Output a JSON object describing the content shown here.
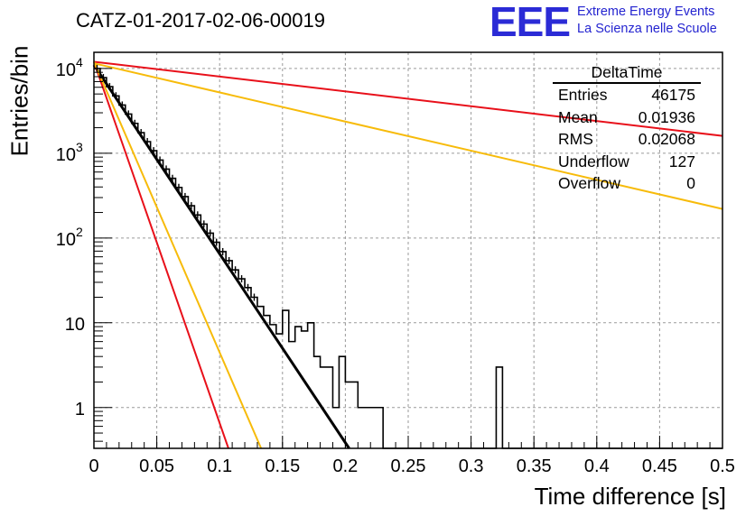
{
  "header": {
    "title": "CATZ-01-2017-02-06-00019",
    "logo_mark": "EEE",
    "logo_line1": "Extreme Energy Events",
    "logo_line2": "La Scienza nelle Scuole"
  },
  "stats": {
    "name": "DeltaTime",
    "rows": [
      {
        "label": "Entries",
        "value": "46175"
      },
      {
        "label": "Mean",
        "value": "0.01936"
      },
      {
        "label": "RMS",
        "value": "0.02068"
      },
      {
        "label": "Underflow",
        "value": "127"
      },
      {
        "label": "Overflow",
        "value": "0"
      }
    ]
  },
  "colors": {
    "histogram": "#000000",
    "red": "#e8101a",
    "orange": "#f7bb0a",
    "grid": "#9a9a9a"
  },
  "chart_data": {
    "type": "line",
    "xlabel": "Time difference [s]",
    "ylabel": "Entries/bin",
    "xlim": [
      0,
      0.5
    ],
    "ylim": [
      0.33,
      15500
    ],
    "ylog": true,
    "grid": true,
    "xticks": [
      "0",
      "0.05",
      "0.1",
      "0.15",
      "0.2",
      "0.25",
      "0.3",
      "0.35",
      "0.4",
      "0.45",
      "0.5"
    ],
    "yticks": [
      {
        "value": 1,
        "label": "1"
      },
      {
        "value": 10,
        "label": "10"
      },
      {
        "value": 100,
        "label": "10",
        "sup": "2"
      },
      {
        "value": 1000,
        "label": "10",
        "sup": "3"
      },
      {
        "value": 10000,
        "label": "10",
        "sup": "4"
      }
    ],
    "histogram": {
      "name": "DeltaTime",
      "bin_width": 0.005,
      "bin_edges_start": 0,
      "values": [
        10000,
        7800,
        6100,
        4750,
        3700,
        2900,
        2250,
        1750,
        1370,
        1070,
        830,
        650,
        505,
        395,
        308,
        240,
        187,
        146,
        114,
        89,
        69,
        54,
        42,
        33,
        26,
        20,
        15.6,
        12.2,
        9.5,
        7.4,
        14,
        6,
        9,
        8,
        10,
        4,
        3,
        3,
        1,
        4,
        2,
        2,
        1,
        1,
        1,
        1,
        0,
        0,
        0,
        0,
        0,
        0,
        0,
        0,
        0,
        0,
        0,
        0,
        0,
        0,
        0,
        0,
        0,
        0,
        3,
        0,
        0,
        0,
        0,
        0,
        0,
        0,
        0,
        0,
        0,
        0,
        0,
        0,
        0,
        0,
        0,
        0,
        0,
        0,
        0,
        0,
        0,
        0,
        0,
        0,
        0,
        0,
        0,
        0,
        0,
        0,
        0,
        0,
        0,
        0
      ]
    },
    "fit_lines": [
      {
        "color": "black",
        "x": [
          0,
          0.203
        ],
        "y": [
          11000,
          0.33
        ],
        "width": 3
      },
      {
        "color": "red",
        "x": [
          0,
          0.5
        ],
        "y": [
          12000,
          1600
        ]
      },
      {
        "color": "orange",
        "x": [
          0,
          0.5
        ],
        "y": [
          11500,
          220
        ]
      },
      {
        "color": "red",
        "x": [
          0,
          0.107
        ],
        "y": [
          12000,
          0.33
        ]
      },
      {
        "color": "orange",
        "x": [
          0,
          0.133
        ],
        "y": [
          12000,
          0.33
        ]
      }
    ]
  }
}
